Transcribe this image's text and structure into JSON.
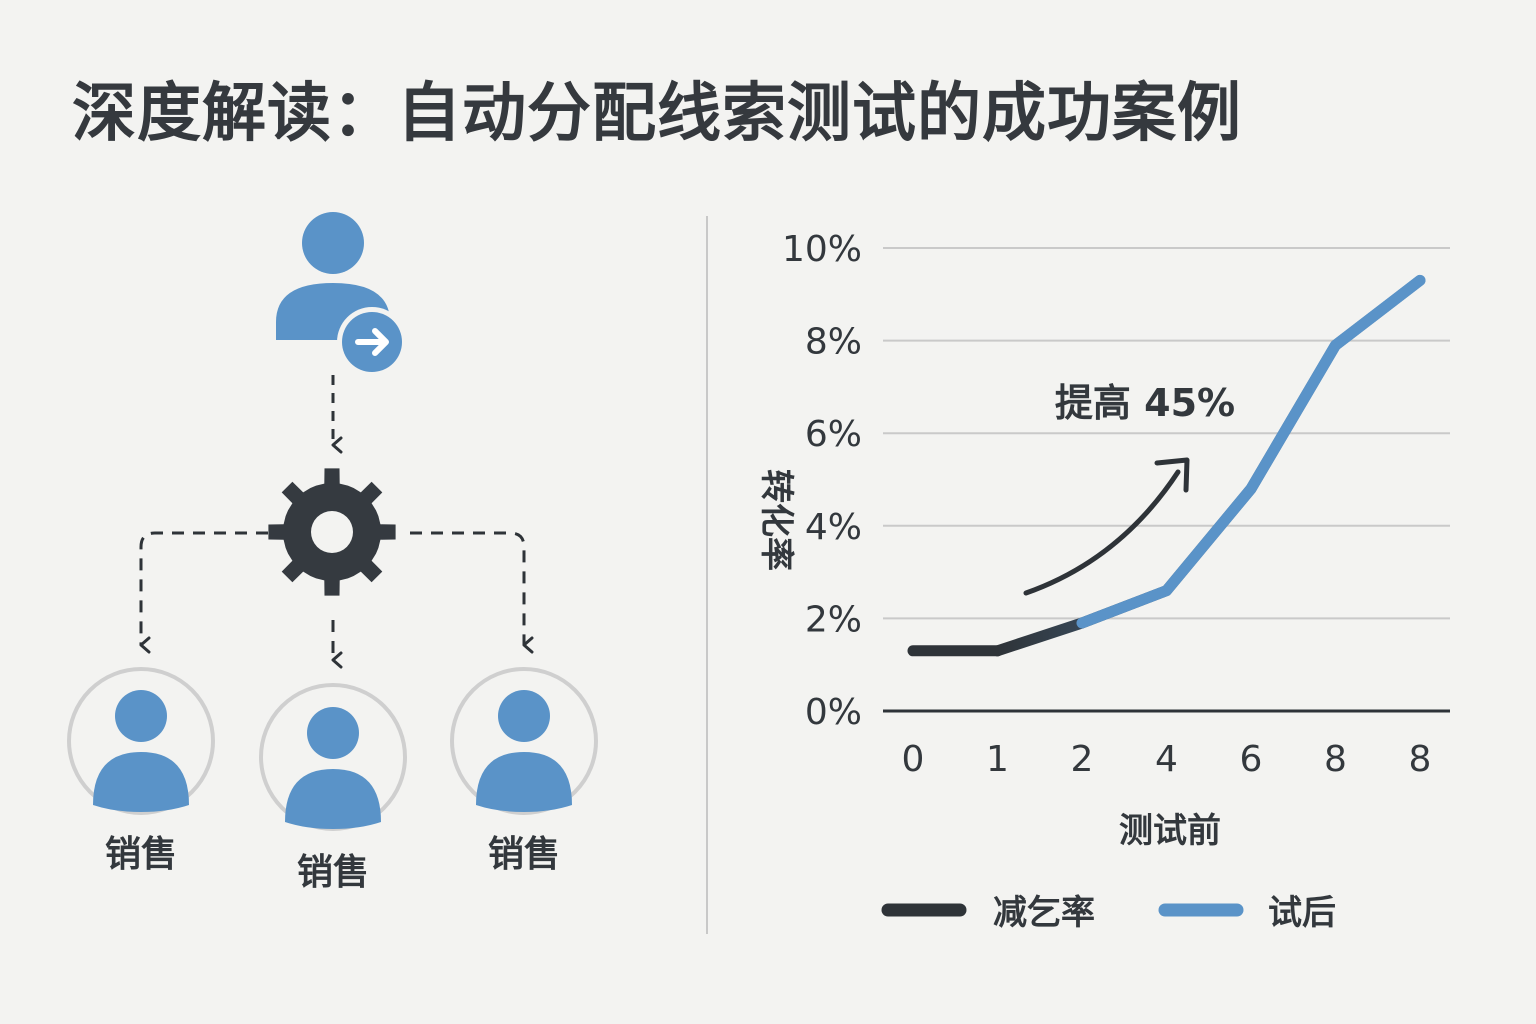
{
  "title": "深度解读：自动分配线索测试的成功案例",
  "diagram": {
    "source_icon": "user-arrow-icon",
    "router_icon": "gear-icon",
    "sales_reps": [
      {
        "label": "销售",
        "icon": "user-icon"
      },
      {
        "label": "销售",
        "icon": "user-icon"
      },
      {
        "label": "销售",
        "icon": "user-icon"
      }
    ]
  },
  "chart_data": {
    "type": "line",
    "ylabel": "转化率",
    "xlabel": "测试前",
    "categories": [
      "0",
      "1",
      "2",
      "4",
      "6",
      "8",
      "8"
    ],
    "yticks": [
      "0%",
      "2%",
      "4%",
      "6%",
      "8%",
      "10%"
    ],
    "ylim": [
      0,
      10
    ],
    "grid": true,
    "series": [
      {
        "name": "减乞率",
        "color": "#2e3338",
        "x": [
          0,
          1
        ],
        "values": [
          1.3,
          1.3
        ]
      },
      {
        "name": "试后",
        "color": "#5a93c8",
        "x": [
          1,
          2,
          3,
          4,
          5,
          6
        ],
        "values": [
          1.3,
          1.9,
          2.6,
          4.8,
          7.9,
          9.3
        ]
      }
    ],
    "annotation": {
      "text": "提高 45%",
      "icon": "arrow-up-right-icon"
    },
    "legend": "bottom"
  },
  "colors": {
    "accent": "#5a93c8",
    "dark": "#2e3338",
    "background": "#f3f3f1",
    "grid": "#c9c9c9"
  }
}
